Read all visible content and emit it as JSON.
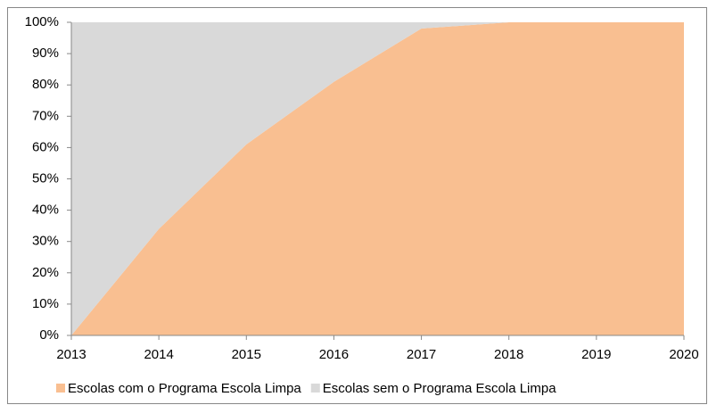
{
  "chart_data": {
    "type": "area",
    "stacked": true,
    "x": [
      2013,
      2014,
      2015,
      2016,
      2017,
      2018,
      2019,
      2020
    ],
    "series": [
      {
        "name": "Escolas com o Programa Escola Limpa",
        "color": "#f9bf91",
        "values": [
          0,
          34,
          61,
          81,
          98,
          100,
          100,
          100
        ]
      },
      {
        "name": "Escolas sem o Programa Escola Limpa",
        "color": "#d9d9d9",
        "values": [
          100,
          66,
          39,
          19,
          2,
          0,
          0,
          0
        ]
      }
    ],
    "xlim": [
      2013,
      2020
    ],
    "xticks": [
      2013,
      2014,
      2015,
      2016,
      2017,
      2018,
      2019,
      2020
    ],
    "ylim": [
      0,
      100
    ],
    "yticks": [
      {
        "value": 0,
        "label": "0%"
      },
      {
        "value": 10,
        "label": "10%"
      },
      {
        "value": 20,
        "label": "20%"
      },
      {
        "value": 30,
        "label": "30%"
      },
      {
        "value": 40,
        "label": "40%"
      },
      {
        "value": 50,
        "label": "50%"
      },
      {
        "value": 60,
        "label": "60%"
      },
      {
        "value": 70,
        "label": "70%"
      },
      {
        "value": 80,
        "label": "80%"
      },
      {
        "value": 90,
        "label": "90%"
      },
      {
        "value": 100,
        "label": "100%"
      }
    ],
    "grid": false,
    "legend": "bottom"
  }
}
